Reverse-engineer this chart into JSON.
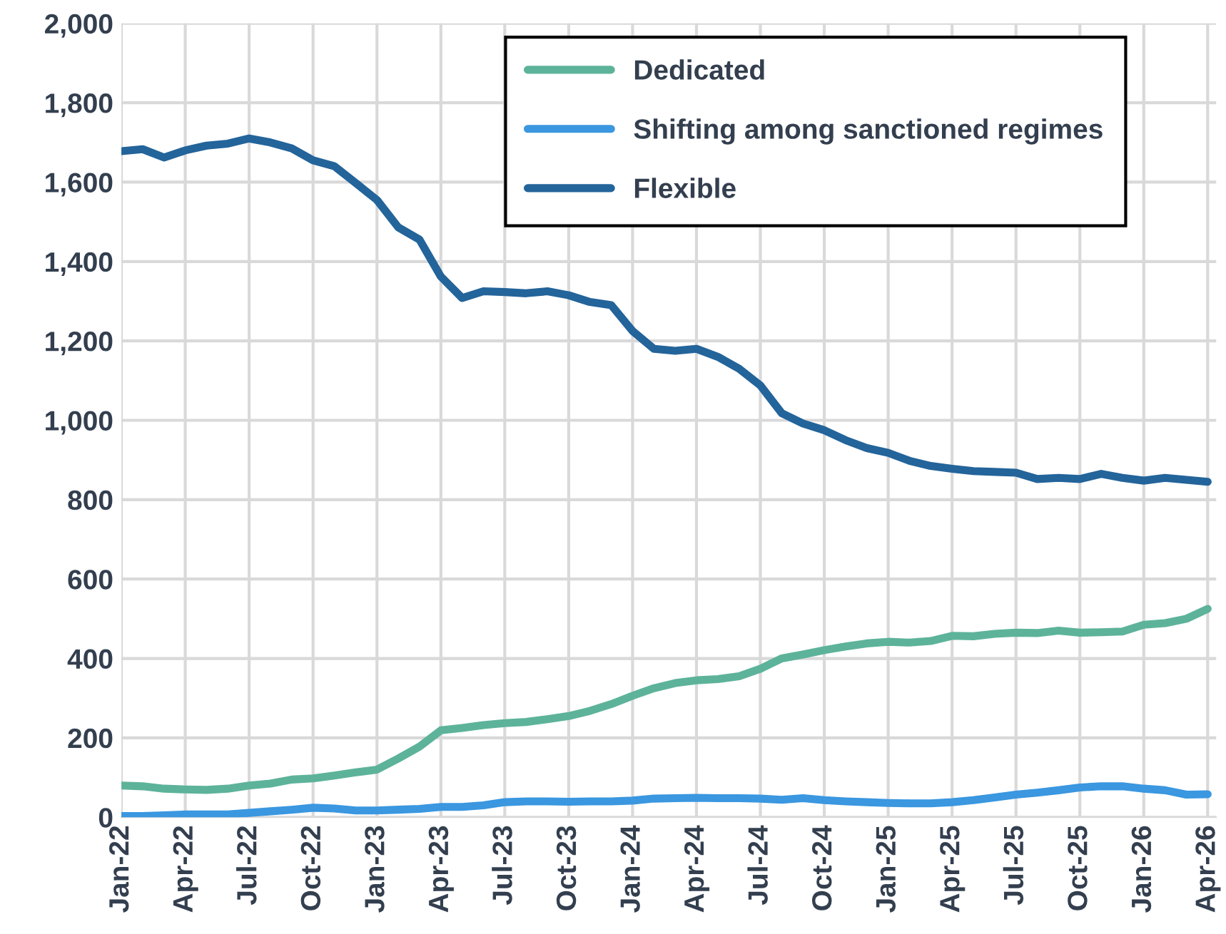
{
  "chart_data": {
    "type": "line",
    "categories": [
      "Jan-22",
      null,
      null,
      "Apr-22",
      null,
      null,
      "Jul-22",
      null,
      null,
      "Oct-22",
      null,
      null,
      "Jan-23",
      null,
      null,
      "Apr-23",
      null,
      null,
      "Jul-23",
      null,
      null,
      "Oct-23",
      null,
      null,
      "Jan-24",
      null,
      null,
      "Apr-24",
      null,
      null,
      "Jul-24",
      null,
      null,
      "Oct-24",
      null,
      null,
      "Jan-25",
      null,
      null,
      "Apr-25",
      null,
      null,
      "Jul-25",
      null,
      null,
      "Oct-25",
      null,
      null,
      "Jan-26",
      null,
      null,
      "Apr-26"
    ],
    "series": [
      {
        "name": "Dedicated",
        "color": "#5db39a",
        "values": [
          80,
          78,
          72,
          70,
          69,
          72,
          80,
          85,
          95,
          98,
          105,
          113,
          120,
          148,
          178,
          219,
          225,
          232,
          237,
          240,
          247,
          255,
          268,
          285,
          306,
          325,
          338,
          345,
          348,
          355,
          374,
          400,
          410,
          421,
          430,
          438,
          442,
          440,
          444,
          457,
          456,
          462,
          465,
          464,
          470,
          465,
          466,
          468,
          485,
          489,
          500,
          525
        ]
      },
      {
        "name": "Shifting among sanctioned regimes",
        "color": "#3a97e0",
        "values": [
          3,
          3,
          5,
          7,
          7,
          7,
          11,
          15,
          19,
          24,
          22,
          17,
          17,
          19,
          21,
          26,
          26,
          30,
          38,
          40,
          40,
          39,
          40,
          40,
          42,
          47,
          48,
          49,
          48,
          48,
          47,
          44,
          48,
          43,
          40,
          38,
          36,
          35,
          35,
          38,
          43,
          50,
          57,
          62,
          68,
          75,
          78,
          78,
          72,
          68,
          57,
          58
        ]
      },
      {
        "name": "Flexible",
        "color": "#23649a",
        "values": [
          1678,
          1683,
          1662,
          1680,
          1692,
          1697,
          1710,
          1700,
          1685,
          1655,
          1640,
          1598,
          1555,
          1486,
          1455,
          1362,
          1308,
          1325,
          1323,
          1320,
          1325,
          1315,
          1298,
          1290,
          1225,
          1180,
          1175,
          1180,
          1160,
          1130,
          1088,
          1018,
          992,
          975,
          950,
          930,
          918,
          898,
          885,
          878,
          872,
          870,
          868,
          852,
          855,
          852,
          865,
          855,
          848,
          855,
          850,
          845
        ]
      }
    ],
    "ylim": [
      0,
      2000
    ],
    "yticks": [
      0,
      200,
      400,
      600,
      800,
      {
        "value": 1000,
        "label": "1,000"
      },
      {
        "value": 1200,
        "label": "1,200"
      },
      {
        "value": 1400,
        "label": "1,400"
      },
      {
        "value": 1600,
        "label": "1,600"
      },
      {
        "value": 1800,
        "label": "1,800"
      },
      {
        "value": 2000,
        "label": "2,000"
      }
    ],
    "grid": true,
    "legend": "top right",
    "marker": "none",
    "line_style": "solid"
  }
}
